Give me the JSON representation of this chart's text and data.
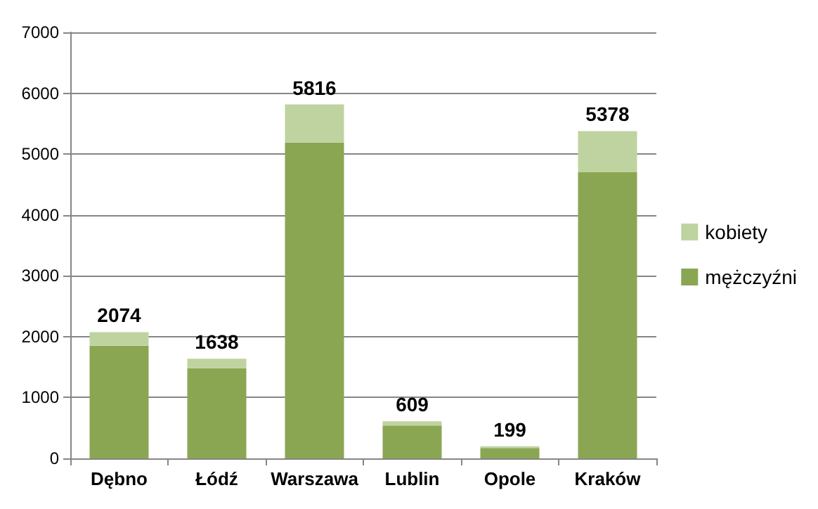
{
  "chart_data": {
    "type": "bar",
    "stacked": true,
    "categories": [
      "Dębno",
      "Łódź",
      "Warszawa",
      "Lublin",
      "Opole",
      "Kraków"
    ],
    "series": [
      {
        "name": "mężczyźni",
        "color": "#8aa653",
        "values": [
          1850,
          1480,
          5190,
          540,
          170,
          4700
        ]
      },
      {
        "name": "kobiety",
        "color": "#bfd3a0",
        "values": [
          224,
          158,
          626,
          69,
          29,
          678
        ]
      }
    ],
    "totals": [
      "2074",
      "1638",
      "5816",
      "609",
      "199",
      "5378"
    ],
    "ylim": [
      0,
      7000
    ],
    "yticks": [
      0,
      1000,
      2000,
      3000,
      4000,
      5000,
      6000,
      7000
    ],
    "grid": "y",
    "legend": "right"
  }
}
